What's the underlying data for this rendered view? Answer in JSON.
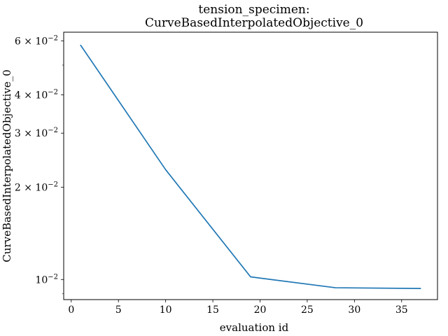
{
  "chart_data": {
    "type": "line",
    "title_line1": "tension_specimen:",
    "title_line2": "CurveBasedInterpolatedObjective_0",
    "xlabel": "evaluation id",
    "ylabel": "CurveBasedInterpolatedObjective_0",
    "yscale": "log",
    "xlim": [
      -0.8,
      38.8
    ],
    "ylim": [
      0.0086,
      0.064
    ],
    "grid": false,
    "line_color": "#1f77b4",
    "x": [
      1,
      10,
      19,
      28,
      37
    ],
    "y": [
      0.058,
      0.0228,
      0.0102,
      0.0094,
      0.00935
    ],
    "x_ticks": [
      {
        "value": 0,
        "label": "0"
      },
      {
        "value": 5,
        "label": "5"
      },
      {
        "value": 10,
        "label": "10"
      },
      {
        "value": 15,
        "label": "15"
      },
      {
        "value": 20,
        "label": "20"
      },
      {
        "value": 25,
        "label": "25"
      },
      {
        "value": 30,
        "label": "30"
      },
      {
        "value": 35,
        "label": "35"
      }
    ],
    "y_ticks": [
      {
        "value": 0.06,
        "mantissa": "6 × 10",
        "exp": "−2"
      },
      {
        "value": 0.04,
        "mantissa": "4 × 10",
        "exp": "−2"
      },
      {
        "value": 0.03,
        "mantissa": "3 × 10",
        "exp": "−2"
      },
      {
        "value": 0.02,
        "mantissa": "2 × 10",
        "exp": "−2"
      },
      {
        "value": 0.01,
        "mantissa": "10",
        "exp": "−2"
      }
    ],
    "y_minor_ticks": [
      0.05,
      0.009
    ]
  }
}
